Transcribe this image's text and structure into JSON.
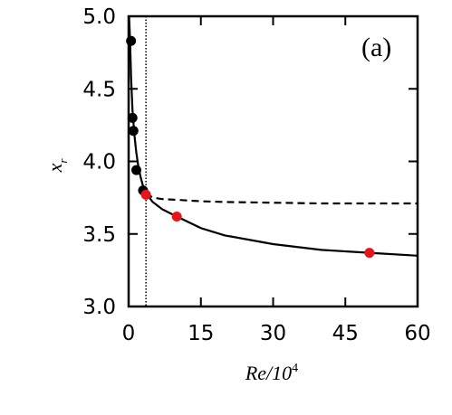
{
  "chart_data": {
    "type": "line",
    "panel_label": "(a)",
    "xlabel": {
      "main": "Re/10",
      "sup": "4"
    },
    "ylabel": {
      "main": "x",
      "sub": "r"
    },
    "xlim": [
      0,
      60
    ],
    "ylim": [
      3.0,
      5.0
    ],
    "x_ticks": [
      0,
      15,
      30,
      45,
      60
    ],
    "x_tick_labels": [
      "0",
      "15",
      "30",
      "45",
      "60"
    ],
    "y_ticks": [
      3.0,
      3.5,
      4.0,
      4.5,
      5.0
    ],
    "y_tick_labels": [
      "3.0",
      "3.5",
      "4.0",
      "4.5",
      "5.0"
    ],
    "vertical_reference_x": 3.6,
    "grid": false,
    "series": [
      {
        "style": "solid",
        "color": "#000000",
        "x": [
          0.1,
          0.3,
          0.5,
          0.8,
          1.2,
          1.6,
          2.0,
          2.5,
          3.0,
          3.6,
          5,
          7,
          10,
          15,
          20,
          30,
          40,
          50,
          60
        ],
        "y": [
          5.0,
          4.83,
          4.58,
          4.35,
          4.18,
          4.06,
          3.97,
          3.89,
          3.83,
          3.78,
          3.72,
          3.67,
          3.62,
          3.54,
          3.49,
          3.43,
          3.39,
          3.37,
          3.35
        ]
      },
      {
        "style": "dashed",
        "color": "#000000",
        "x": [
          3.6,
          5,
          7,
          10,
          15,
          20,
          30,
          40,
          50,
          60
        ],
        "y": [
          3.78,
          3.75,
          3.74,
          3.735,
          3.725,
          3.72,
          3.715,
          3.71,
          3.71,
          3.71
        ]
      },
      {
        "style": "markers",
        "color": "#000000",
        "x": [
          0.5,
          0.8,
          1.0,
          1.6,
          3.0
        ],
        "y": [
          4.83,
          4.3,
          4.21,
          3.94,
          3.8
        ]
      },
      {
        "style": "markers",
        "color": "#e8141c",
        "x": [
          3.6,
          10,
          50
        ],
        "y": [
          3.77,
          3.62,
          3.37
        ]
      }
    ]
  }
}
